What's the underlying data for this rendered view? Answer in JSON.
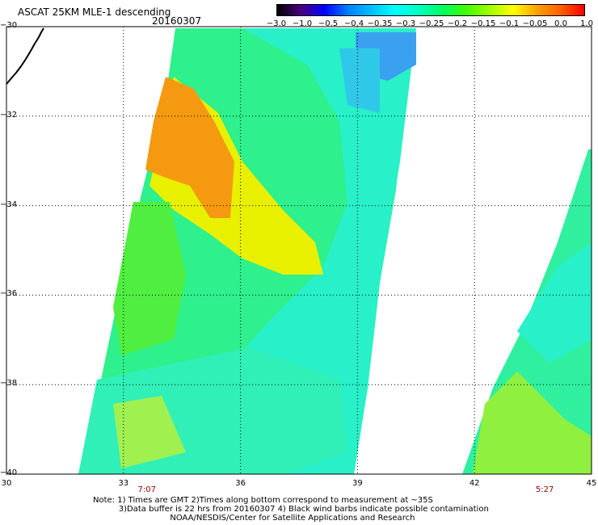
{
  "title": "ASCAT 25KM MLE-1 descending",
  "date": "20160307",
  "colorbar": {
    "labels": [
      "−3.0",
      "−1.0",
      "−0.5",
      "−0.4",
      "−0.35",
      "−0.3",
      "−0.25",
      "−0.2",
      "−0.15",
      "−0.1",
      "−0.05",
      "0.0",
      "1.0"
    ],
    "colors": [
      "#000000",
      "#4b007f",
      "#0000ff",
      "#0080ff",
      "#00c0ff",
      "#00ffff",
      "#00ffc0",
      "#00ff60",
      "#40ff00",
      "#a0ff00",
      "#ffff00",
      "#ffa000",
      "#ff6000",
      "#ff0000"
    ]
  },
  "map": {
    "lon_range": [
      30,
      45
    ],
    "lat_range": [
      -40,
      -30
    ],
    "lon_labels": [
      "30",
      "33",
      "36",
      "39",
      "42",
      "45"
    ],
    "lat_labels": [
      "−30",
      "−32",
      "−34",
      "−36",
      "−38",
      "−40"
    ],
    "grid_lons": [
      33,
      36,
      39,
      42
    ],
    "grid_lats": [
      -32,
      -34,
      -36,
      -38
    ],
    "times": [
      {
        "label": "7:07",
        "lon": 33.6
      },
      {
        "label": "5:27",
        "lon": 43.8
      }
    ]
  },
  "notes": {
    "line1": "Note: 1) Times are GMT 2)Times along bottom correspond to measurement at ~35S",
    "line2": "3)Data buffer is 22 hrs from 20160307 4) Black wind barbs indicate possible contamination",
    "line3": "NOAA/NESDIS/Center for Satellite Applications and Research"
  }
}
